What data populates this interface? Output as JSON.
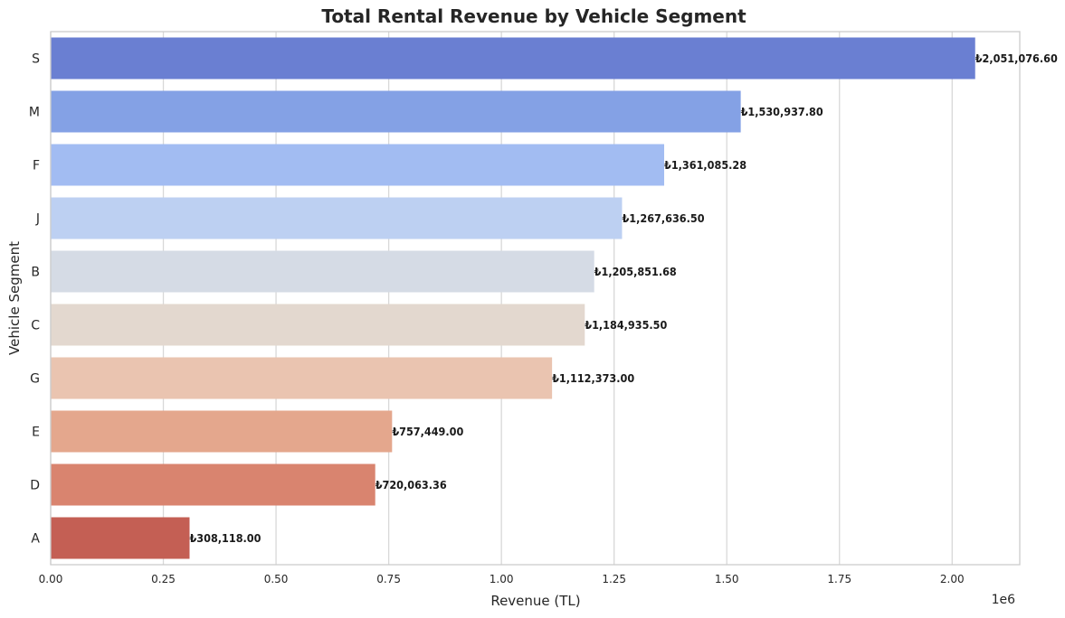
{
  "chart_data": {
    "type": "bar",
    "orientation": "horizontal",
    "title": "Total Rental Revenue by Vehicle Segment",
    "xlabel": "Revenue (TL)",
    "ylabel": "Vehicle Segment",
    "x_offset_label": "1e6",
    "xlim": [
      0,
      2.15
    ],
    "x_ticks": [
      "0.00",
      "0.25",
      "0.50",
      "0.75",
      "1.00",
      "1.25",
      "1.50",
      "1.75",
      "2.00"
    ],
    "grid": true,
    "categories": [
      "S",
      "M",
      "F",
      "J",
      "B",
      "C",
      "G",
      "E",
      "D",
      "A"
    ],
    "values": [
      2051076.6,
      1530937.8,
      1361085.28,
      1267636.5,
      1205851.68,
      1184935.5,
      1112373.0,
      757449.0,
      720063.36,
      308118.0
    ],
    "data_labels": [
      "₺2,051,076.60",
      "₺1,530,937.80",
      "₺1,361,085.28",
      "₺1,267,636.50",
      "₺1,205,851.68",
      "₺1,184,935.50",
      "₺1,112,373.00",
      "₺757,449.00",
      "₺720,063.36",
      "₺308,118.00"
    ],
    "colors": [
      "#6a7fd2",
      "#84a1e5",
      "#a2bcf2",
      "#bdd0f2",
      "#d5dbe5",
      "#e3d8cf",
      "#eac4b0",
      "#e4a78d",
      "#d9846f",
      "#c45f54"
    ]
  }
}
